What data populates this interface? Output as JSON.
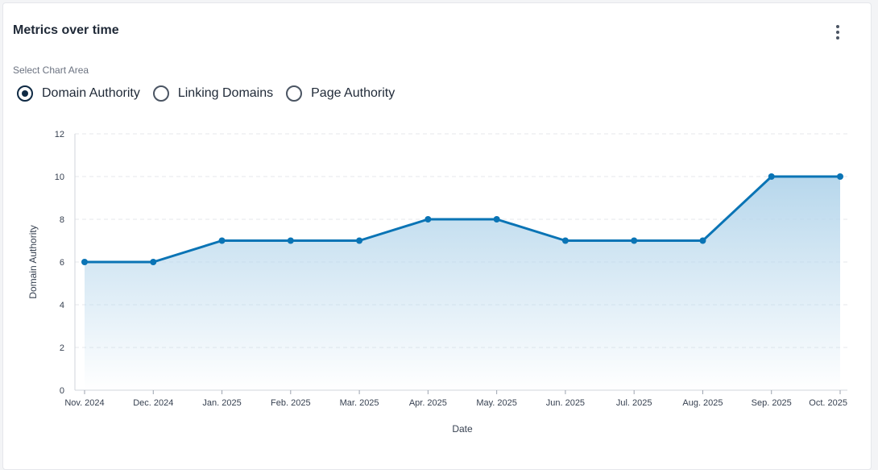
{
  "card": {
    "title": "Metrics over time",
    "menu_icon": "kebab-vertical-icon"
  },
  "chart_area_selector": {
    "label": "Select Chart Area",
    "options": [
      {
        "label": "Domain Authority",
        "selected": true
      },
      {
        "label": "Linking Domains",
        "selected": false
      },
      {
        "label": "Page Authority",
        "selected": false
      }
    ]
  },
  "chart_data": {
    "type": "area",
    "title": "",
    "xlabel": "Date",
    "ylabel": "Domain Authority",
    "categories": [
      "Nov. 2024",
      "Dec. 2024",
      "Jan. 2025",
      "Feb. 2025",
      "Mar. 2025",
      "Apr. 2025",
      "May. 2025",
      "Jun. 2025",
      "Jul. 2025",
      "Aug. 2025",
      "Sep. 2025",
      "Oct. 2025"
    ],
    "series": [
      {
        "values": [
          6,
          6,
          7,
          7,
          7,
          8,
          8,
          7,
          7,
          7,
          10,
          10
        ]
      }
    ],
    "ylim": [
      0,
      12
    ],
    "yticks": [
      0,
      2,
      4,
      6,
      8,
      10,
      12
    ],
    "grid": true,
    "colors": {
      "line": "#0a74b5",
      "fill": "#b7d7ec"
    }
  }
}
